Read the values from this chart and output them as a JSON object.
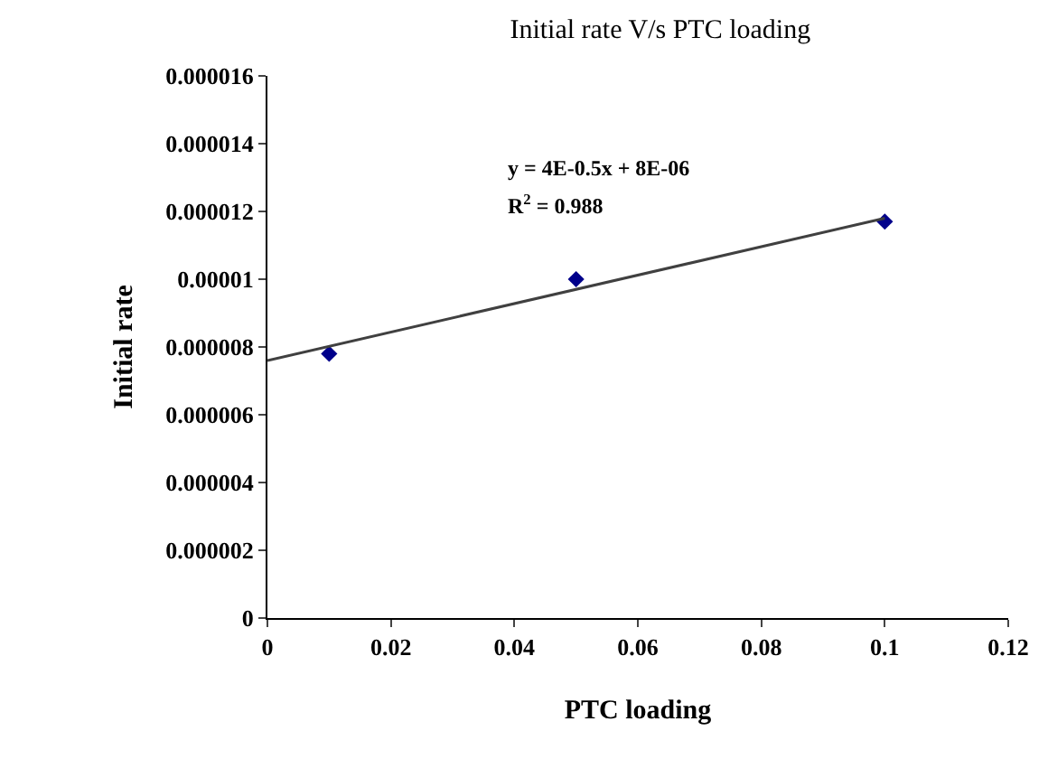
{
  "chart_data": {
    "type": "scatter",
    "title": "Initial rate V/s PTC loading",
    "xlabel": "PTC loading",
    "ylabel": "Initial rate",
    "x": [
      0.01,
      0.05,
      0.1
    ],
    "series": [
      {
        "color": "#00008b",
        "values": [
          7.8e-06,
          1e-05,
          1.17e-05
        ]
      },
      {
        "type": "line",
        "marker": "none",
        "color": "#404040",
        "x": [
          0,
          0.1
        ],
        "values": [
          7.6e-06,
          1.18e-05
        ]
      }
    ],
    "annotations": [
      "y = 4E-0.5x + 8E-06",
      "R$^{2}$ = 0.988"
    ],
    "xlim": [
      0,
      0.12
    ],
    "xticks": [
      0,
      0.02,
      0.04,
      0.06,
      0.08,
      0.1,
      0.12
    ],
    "ylim": [
      0,
      1.6e-05
    ],
    "yticks": [
      0,
      {
        "value": 2e-06,
        "label": "0.000002"
      },
      {
        "value": 4e-06,
        "label": "0.000004"
      },
      {
        "value": 6e-06,
        "label": "0.000006"
      },
      {
        "value": 8e-06,
        "label": "0.000008"
      },
      {
        "value": 1e-05,
        "label": "0.00001"
      },
      {
        "value": 1.2e-05,
        "label": "0.000012"
      },
      {
        "value": 1.4e-05,
        "label": "0.000014"
      },
      {
        "value": 1.6e-05,
        "label": "0.000016"
      }
    ],
    "grid": false,
    "marker": "diamond"
  }
}
